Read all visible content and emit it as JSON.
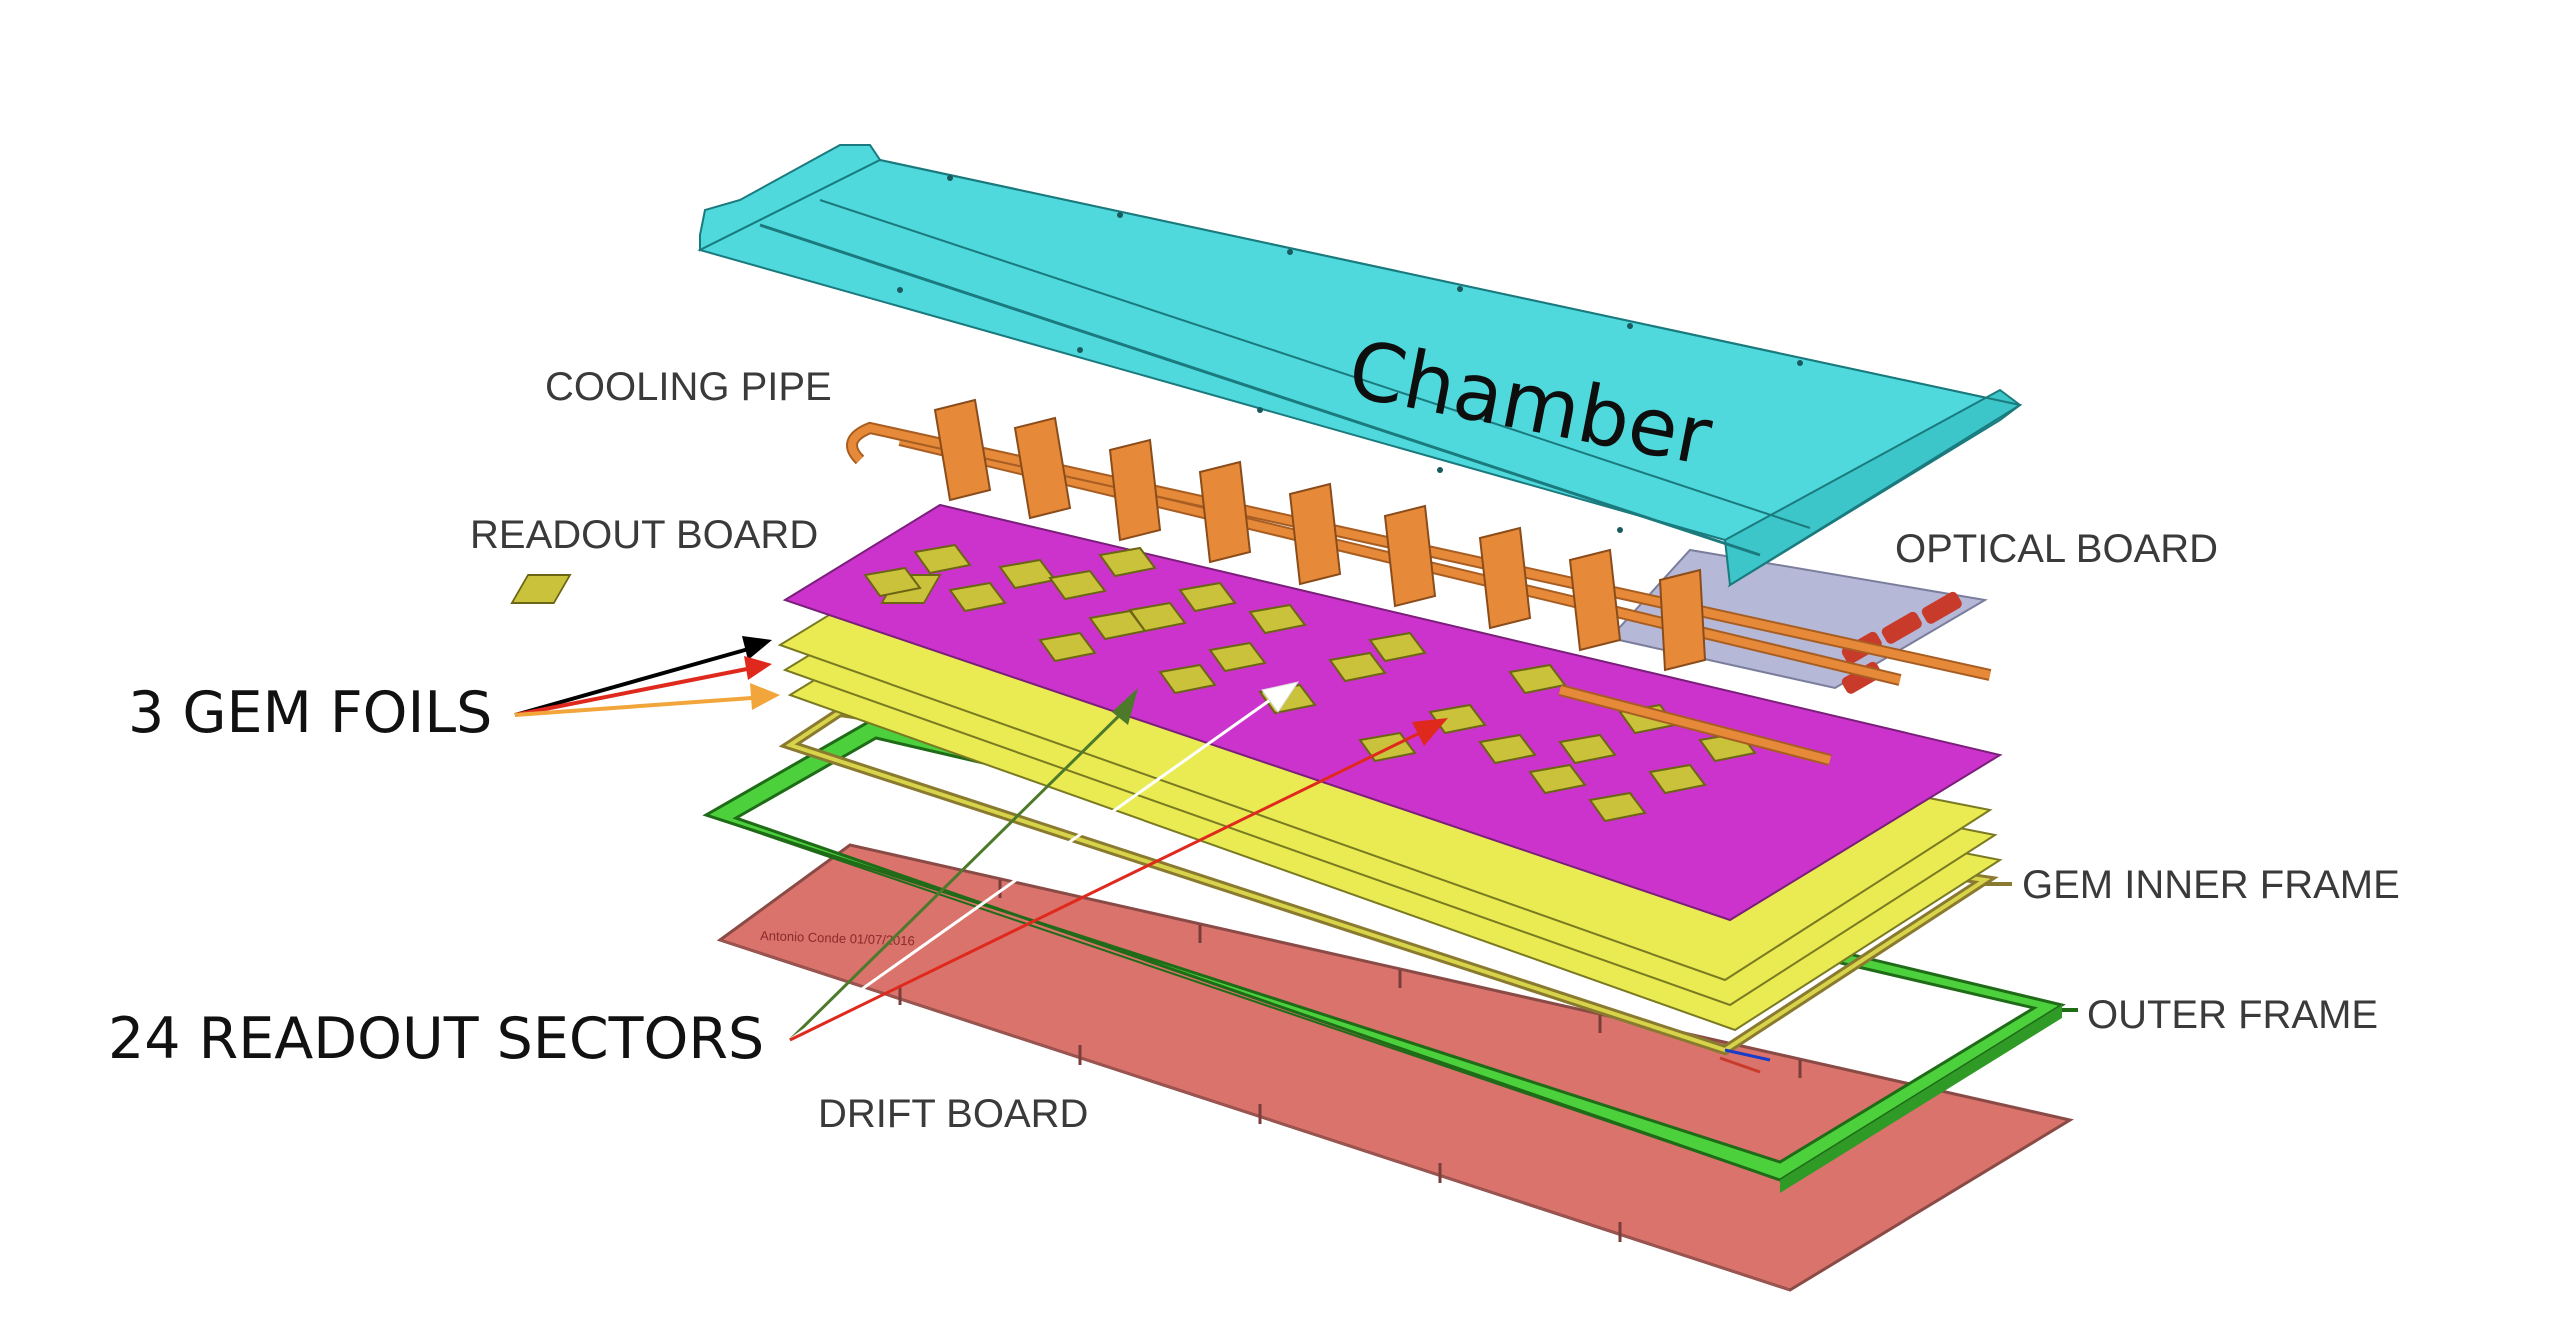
{
  "labels": {
    "chamber": "Chamber",
    "cooling_pipe": "COOLING PIPE",
    "readout_board": "READOUT BOARD",
    "optical_board": "OPTICAL BOARD",
    "gem_foils": "3 GEM FOILS",
    "gem_inner_frame": "GEM INNER FRAME",
    "outer_frame": "OUTER FRAME",
    "readout_sectors": "24 READOUT SECTORS",
    "drift_board": "DRIFT BOARD",
    "drift_stamp": "Antonio Conde   01/07/2016"
  },
  "colors": {
    "chamber": "#4fd9dc",
    "cooling_pipe": "#e68a3a",
    "readout_board": "#cc33cc",
    "readout_pad": "#c9c23a",
    "gem_foil": "#eaea52",
    "optical_board": "#b5b8d6",
    "outer_frame": "#4cd13d",
    "drift_board": "#d9736c",
    "arrow_black": "#000000",
    "arrow_red": "#e0291d",
    "arrow_orange": "#f2a53a",
    "arrow_green": "#4d7a2a",
    "arrow_white": "#ffffff"
  }
}
